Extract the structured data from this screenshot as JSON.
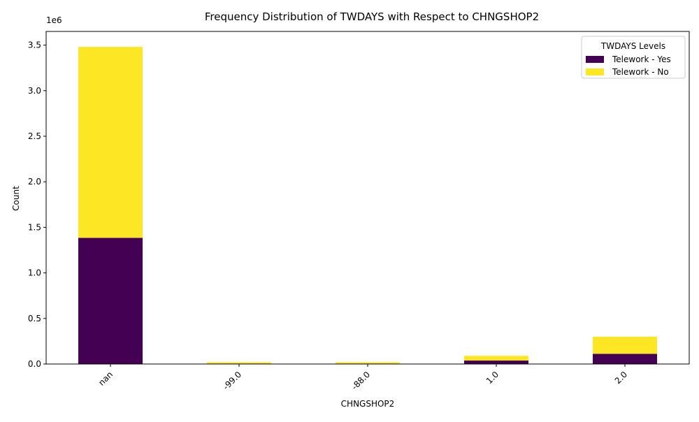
{
  "chart_data": {
    "type": "bar",
    "stacked": true,
    "title": "Frequency Distribution of TWDAYS with Respect to CHNGSHOP2",
    "xlabel": "CHNGSHOP2",
    "ylabel": "Count",
    "y_offset_label": "1e6",
    "categories": [
      "nan",
      "-99.0",
      "-88.0",
      "1.0",
      "2.0"
    ],
    "series": [
      {
        "name": "Telework - Yes",
        "color": "#440154",
        "values": [
          1385000,
          5000,
          5000,
          38000,
          112000
        ]
      },
      {
        "name": "Telework - No",
        "color": "#fde725",
        "values": [
          2095000,
          15000,
          15000,
          52000,
          188000
        ]
      }
    ],
    "ylim": [
      0,
      3650000
    ],
    "yticks": [
      0,
      500000,
      1000000,
      1500000,
      2000000,
      2500000,
      3000000,
      3500000
    ],
    "ytick_labels": [
      "0.0",
      "0.5",
      "1.0",
      "1.5",
      "2.0",
      "2.5",
      "3.0",
      "3.5"
    ],
    "legend": {
      "title": "TWDAYS Levels",
      "placement": "top-right"
    },
    "grid": false
  }
}
